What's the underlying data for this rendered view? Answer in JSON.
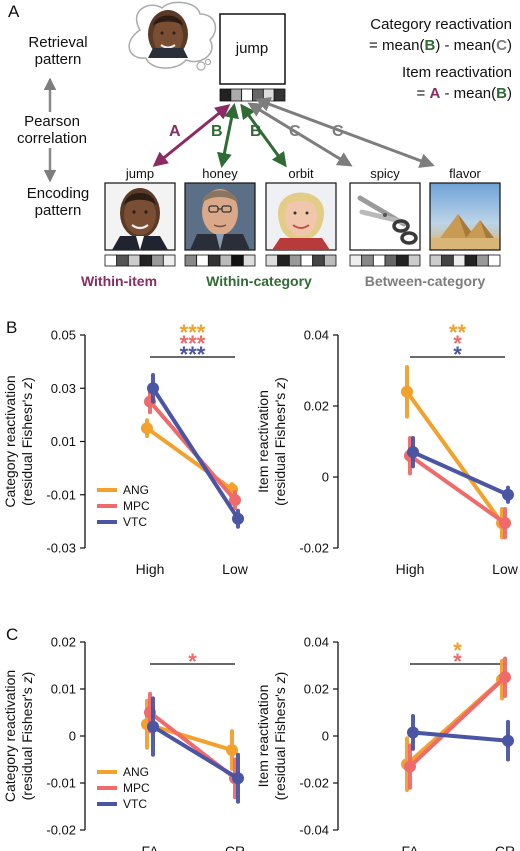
{
  "panel_a": {
    "label": "A",
    "retrieval_label": [
      "Retrieval",
      "pattern"
    ],
    "correlation_label": [
      "Pearson",
      "correlation"
    ],
    "encoding_label": [
      "Encoding",
      "pattern"
    ],
    "retrieval_word": "jump",
    "formula_category": [
      "Category reactivation",
      "= mean(",
      "B",
      ") - mean(",
      "C",
      ")"
    ],
    "formula_item": [
      "Item reactivation",
      "= ",
      "A",
      " - mean(",
      "B",
      ")"
    ],
    "arrow_letters": [
      "A",
      "B",
      "B",
      "C",
      "C"
    ],
    "encoding_words": [
      "jump",
      "honey",
      "orbit",
      "spicy",
      "flavor"
    ],
    "groups": [
      "Within-item",
      "Within-category",
      "Between-category"
    ],
    "colors": {
      "within_item": "#8b2a63",
      "within_category": "#2f6b33",
      "between_category": "#7d7d7d"
    }
  },
  "panel_b": {
    "label": "B"
  },
  "panel_c": {
    "label": "C"
  },
  "series_colors": {
    "ANG": "#f2a12c",
    "MPC": "#ef6a6a",
    "VTC": "#4a55a4"
  },
  "chart_data": [
    {
      "type": "line",
      "panel": "B",
      "categories": [
        "High",
        "Low"
      ],
      "ylabel": [
        "Category reactivation",
        "(residual Fishesr's z)"
      ],
      "ylim": [
        -0.03,
        0.05
      ],
      "yticks": [
        "0.05",
        "0.03",
        "0.01",
        "-0.01",
        "-0.03"
      ],
      "legend": "bottom-left",
      "series": [
        {
          "name": "ANG",
          "values": [
            0.015,
            -0.008
          ],
          "err": [
            0.003,
            0.002
          ]
        },
        {
          "name": "MPC",
          "values": [
            0.025,
            -0.012
          ],
          "err": [
            0.004,
            0.003
          ]
        },
        {
          "name": "VTC",
          "values": [
            0.03,
            -0.019
          ],
          "err": [
            0.005,
            0.003
          ]
        }
      ],
      "sig_stars": [
        [
          "***",
          "ANG"
        ],
        [
          "***",
          "MPC"
        ],
        [
          "***",
          "VTC"
        ]
      ]
    },
    {
      "type": "line",
      "panel": "B",
      "categories": [
        "High",
        "Low"
      ],
      "ylabel": [
        "Item reactivation",
        "(residual Fishesr's z)"
      ],
      "ylim": [
        -0.02,
        0.04
      ],
      "yticks": [
        "0.04",
        "0.02",
        "0",
        "-0.02"
      ],
      "series": [
        {
          "name": "ANG",
          "values": [
            0.024,
            -0.013
          ],
          "err": [
            0.007,
            0.004
          ]
        },
        {
          "name": "MPC",
          "values": [
            0.006,
            -0.013
          ],
          "err": [
            0.005,
            0.004
          ]
        },
        {
          "name": "VTC",
          "values": [
            0.007,
            -0.005
          ],
          "err": [
            0.004,
            0.002
          ]
        }
      ],
      "sig_stars": [
        [
          "**",
          "ANG"
        ],
        [
          "*",
          "MPC"
        ],
        [
          "*",
          "VTC"
        ]
      ]
    },
    {
      "type": "line",
      "panel": "C",
      "categories": [
        "FA",
        "CR"
      ],
      "ylabel": [
        "Category reactivation",
        "(residual Fishesr's z)"
      ],
      "ylim": [
        -0.02,
        0.02
      ],
      "yticks": [
        "0.02",
        "0.01",
        "0",
        "-0.01",
        "-0.02"
      ],
      "legend": "bottom-left",
      "series": [
        {
          "name": "ANG",
          "values": [
            0.0025,
            -0.003
          ],
          "err": [
            0.005,
            0.004
          ]
        },
        {
          "name": "MPC",
          "values": [
            0.005,
            -0.009
          ],
          "err": [
            0.004,
            0.004
          ]
        },
        {
          "name": "VTC",
          "values": [
            0.002,
            -0.009
          ],
          "err": [
            0.006,
            0.005
          ]
        }
      ],
      "sig_stars": [
        [
          "*",
          "MPC"
        ]
      ]
    },
    {
      "type": "line",
      "panel": "C",
      "categories": [
        "FA",
        "CR"
      ],
      "ylabel": [
        "Item reactivation",
        "(residual Fishesr's z)"
      ],
      "ylim": [
        -0.04,
        0.04
      ],
      "yticks": [
        "0.04",
        "0.02",
        "0",
        "-0.02",
        "-0.04"
      ],
      "series": [
        {
          "name": "ANG",
          "values": [
            -0.012,
            0.024
          ],
          "err": [
            0.011,
            0.008
          ]
        },
        {
          "name": "MPC",
          "values": [
            -0.013,
            0.025
          ],
          "err": [
            0.009,
            0.008
          ]
        },
        {
          "name": "VTC",
          "values": [
            0.0015,
            -0.002
          ],
          "err": [
            0.007,
            0.008
          ]
        }
      ],
      "sig_stars": [
        [
          "*",
          "ANG"
        ],
        [
          "*",
          "MPC"
        ]
      ]
    }
  ]
}
